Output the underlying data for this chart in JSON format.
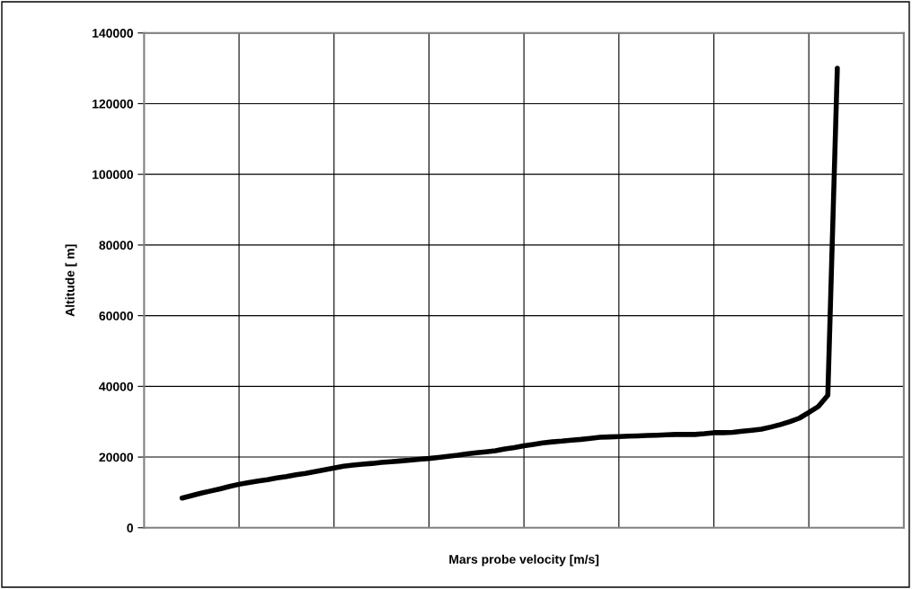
{
  "chart_data": {
    "type": "line",
    "xlabel": "Mars probe velocity [m/s]",
    "ylabel": "Altitude [ m]",
    "categories": [
      null,
      null,
      null,
      null,
      null,
      null,
      null,
      null,
      null,
      null,
      null,
      null,
      null,
      null,
      null,
      null,
      null,
      null,
      null,
      null,
      null,
      null,
      null,
      null,
      null,
      null,
      null,
      null,
      null,
      null,
      null,
      null,
      null,
      null,
      null,
      null,
      null,
      null,
      null,
      null,
      null,
      null,
      null,
      null,
      null,
      null,
      null,
      null,
      null,
      null,
      null,
      null,
      null,
      null,
      null,
      null,
      null,
      null,
      null,
      null,
      null,
      null,
      null,
      null,
      null,
      null,
      null,
      null,
      null,
      null
    ],
    "series": [
      {
        "color": "#000000",
        "values": [
          8400,
          9100,
          9800,
          10400,
          11000,
          11700,
          12300,
          12800,
          13200,
          13600,
          14100,
          14500,
          15000,
          15400,
          15900,
          16400,
          16900,
          17400,
          17700,
          18000,
          18200,
          18500,
          18700,
          18900,
          19100,
          19400,
          19600,
          19900,
          20200,
          20500,
          20900,
          21200,
          21500,
          21800,
          22300,
          22700,
          23200,
          23600,
          24000,
          24300,
          24500,
          24800,
          25000,
          25300,
          25600,
          25700,
          25800,
          25900,
          26000,
          26100,
          26200,
          26300,
          26400,
          26400,
          26400,
          26600,
          26900,
          26900,
          27000,
          27300,
          27600,
          27900,
          28500,
          29200,
          30000,
          31000,
          32600,
          34300,
          37500,
          130000
        ]
      }
    ],
    "ylim": [
      0,
      140000
    ],
    "yticks": [
      0,
      20000,
      40000,
      60000,
      80000,
      100000,
      120000,
      140000
    ],
    "grid": true,
    "marker": "none",
    "line_style": "solid"
  }
}
